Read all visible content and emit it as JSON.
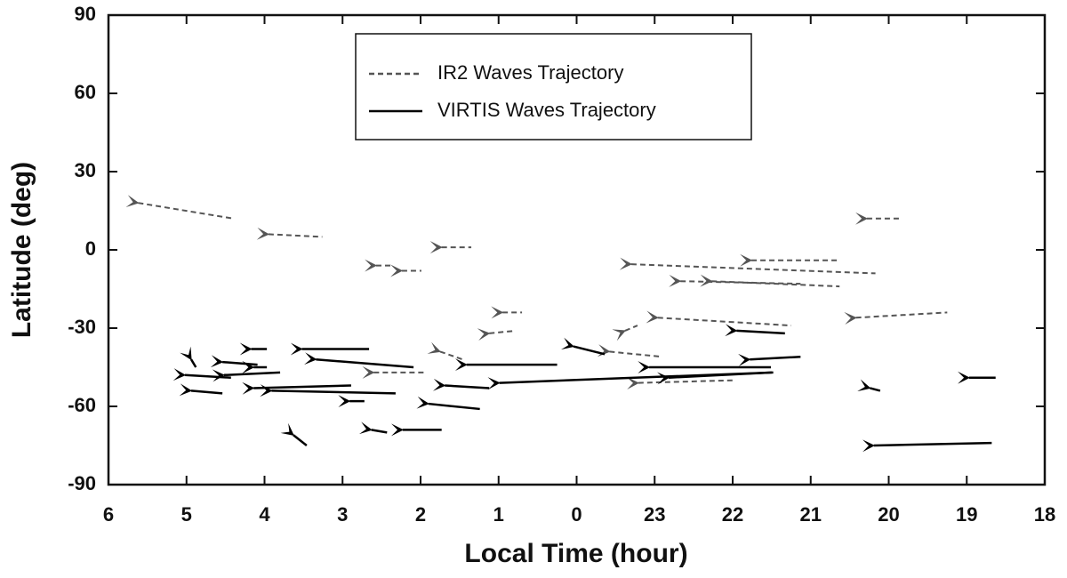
{
  "chart_data": {
    "type": "arrow-trajectory",
    "x_label": "Local Time (hour)",
    "y_label": "Latitude (deg)",
    "xlim": [
      6,
      -6
    ],
    "ylim": [
      -90,
      90
    ],
    "xticks": [
      6,
      5,
      4,
      3,
      2,
      1,
      0,
      {
        "value": -1,
        "label": "23"
      },
      {
        "value": -2,
        "label": "22"
      },
      {
        "value": -3,
        "label": "21"
      },
      {
        "value": -4,
        "label": "20"
      },
      {
        "value": -5,
        "label": "19"
      },
      {
        "value": -6,
        "label": "18"
      }
    ],
    "yticks": [
      90,
      60,
      30,
      0,
      -30,
      -60,
      -90
    ],
    "legend": "top-center",
    "series": [
      {
        "name": "IR2 Waves Trajectory",
        "color": "#555555",
        "dash": "6 4",
        "head_x": [
          5.62,
          3.95,
          1.73,
          2.57,
          2.24,
          -0.7,
          -2.24,
          -1.33,
          -1.73,
          -3.72,
          -3.58,
          -1.04,
          0.95,
          1.12,
          -0.62,
          1.75,
          -0.42,
          2.6,
          -0.79
        ],
        "head_y": [
          18,
          6,
          1,
          -6,
          -8,
          -5.5,
          -4,
          -12,
          -12,
          12,
          -26,
          -26,
          -24,
          -32,
          -31,
          -39,
          -39,
          -47,
          -51
        ],
        "tail_x": [
          4.4,
          3.26,
          1.35,
          2.38,
          1.99,
          -3.83,
          -3.34,
          -2.87,
          -3.37,
          -4.14,
          -4.75,
          -2.75,
          0.7,
          0.78,
          -0.78,
          1.46,
          -1.1,
          1.92,
          -2.01
        ],
        "tail_y": [
          12,
          5,
          1,
          -6,
          -8,
          -9,
          -4,
          -13,
          -14,
          12,
          -24,
          -29,
          -24,
          -31,
          -29,
          -42,
          -41,
          -47,
          -50
        ]
      },
      {
        "name": "VIRTIS Waves Trajectory",
        "color": "#000000",
        "dash": "none",
        "head_x": [
          4.94,
          5.02,
          4.94,
          4.54,
          4.52,
          4.17,
          4.14,
          4.14,
          3.91,
          3.52,
          3.34,
          2.91,
          3.63,
          2.63,
          2.23,
          1.9,
          1.69,
          1.41,
          0.99,
          0.04,
          -0.93,
          -1.18,
          -2.05,
          -2.22,
          -3.76,
          -5.03,
          -3.81
        ],
        "head_y": [
          -42,
          -48,
          -54,
          -43,
          -48,
          -38,
          -45,
          -53,
          -54,
          -38,
          -42,
          -58,
          -71,
          -69,
          -69,
          -59,
          -52,
          -44,
          -51,
          -37,
          -45,
          -49,
          -31,
          -42,
          -53,
          -49,
          -75
        ],
        "tail_x": [
          4.88,
          4.43,
          4.54,
          4.09,
          3.8,
          3.97,
          3.97,
          2.89,
          2.32,
          2.66,
          2.09,
          2.72,
          3.46,
          2.43,
          1.73,
          1.24,
          1.12,
          0.25,
          -2.52,
          -0.36,
          -2.49,
          -2.5,
          -2.67,
          -2.87,
          -3.89,
          -5.37,
          -5.32
        ],
        "tail_y": [
          -45,
          -49,
          -55,
          -44,
          -47,
          -38,
          -45,
          -52,
          -55,
          -38,
          -45,
          -58,
          -75,
          -70,
          -69,
          -61,
          -53,
          -44,
          -47,
          -40,
          -45,
          -47,
          -32,
          -41,
          -54,
          -49,
          -74
        ]
      }
    ]
  }
}
